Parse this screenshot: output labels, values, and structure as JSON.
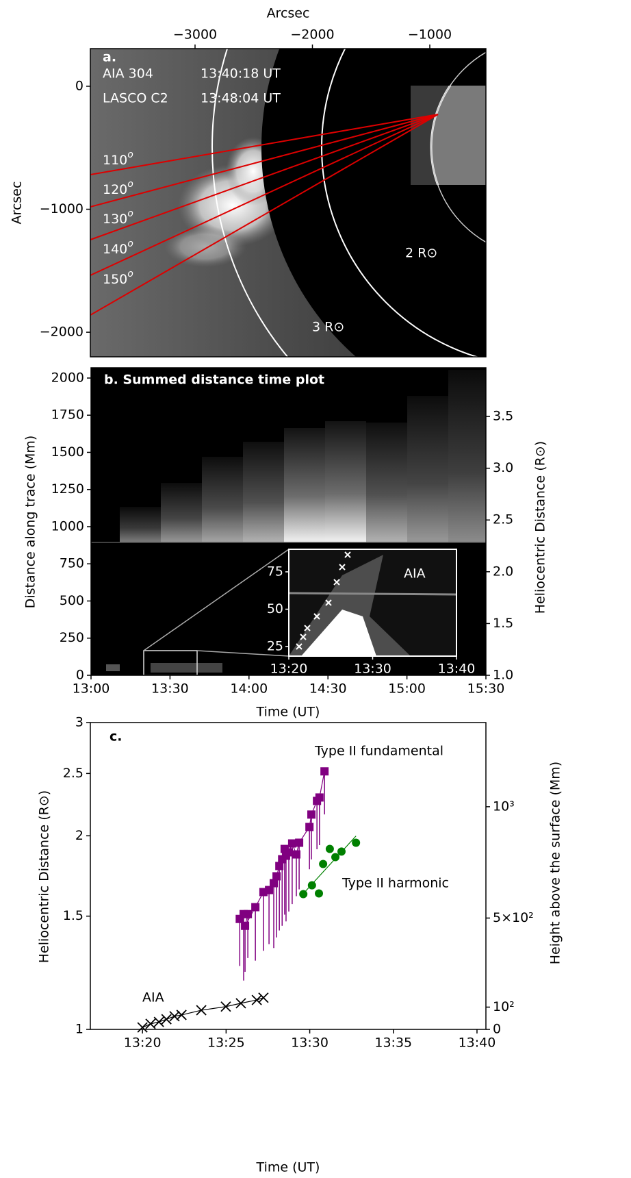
{
  "chart_data": [
    {
      "type": "image",
      "panel_label": "a.",
      "xlabel": "Arcsec",
      "ylabel": "Arcsec",
      "xaxis": "top",
      "xlim": [
        -3892,
        -522
      ],
      "xticks": [
        {
          "value": -3000,
          "label": "−3000"
        },
        {
          "value": -2000,
          "label": "−2000"
        },
        {
          "value": -1000,
          "label": "−1000"
        }
      ],
      "ylim": [
        -2200,
        306
      ],
      "yticks": [
        0,
        {
          "value": -1000,
          "label": "−1000"
        },
        {
          "value": -2000,
          "label": "−2000"
        }
      ],
      "instruments": [
        {
          "name": "AIA 304",
          "time": "13:40:18 UT"
        },
        {
          "name": "LASCO C2",
          "time": "13:48:04 UT"
        }
      ],
      "traces": [
        {
          "angle": "110",
          "sup": "o"
        },
        {
          "angle": "120",
          "sup": "o"
        },
        {
          "angle": "130",
          "sup": "o"
        },
        {
          "angle": "140",
          "sup": "o"
        },
        {
          "angle": "150",
          "sup": "o"
        }
      ],
      "circle_labels": [
        "3 R⊙",
        "2 R⊙"
      ]
    },
    {
      "type": "image",
      "title": "b. Summed distance time plot",
      "xlabel": "Time (UT)",
      "ylabel": "Distance along trace (Mm)",
      "y2label": "Heliocentric Distance (R⊙)",
      "xlim": [
        "13:00",
        "15:30"
      ],
      "xticks": [
        "13:00",
        "13:30",
        "14:00",
        "14:30",
        "15:00",
        "15:30"
      ],
      "ylim": [
        0,
        2069
      ],
      "yticks": [
        0,
        250,
        500,
        750,
        1000,
        1250,
        1500,
        1750,
        2000
      ],
      "y2lim": [
        1.0,
        3.97
      ],
      "y2ticks": [
        {
          "value": 1,
          "label": "1.0"
        },
        1.5,
        {
          "value": 2,
          "label": "2.0"
        },
        2.5,
        {
          "value": 3,
          "label": "3.0"
        },
        3.5
      ],
      "inset": {
        "label": "AIA",
        "xlim": [
          "13:20",
          "13:40"
        ],
        "xticks": [
          "13:20",
          "13:30",
          "13:40"
        ],
        "ylim": [
          18.6,
          90.1
        ],
        "yticks": [
          25,
          50,
          75
        ]
      }
    },
    {
      "type": "scatter",
      "panel_label": "c.",
      "xlabel": "Time (UT)",
      "ylabel": "Heliocentric Distance (R⊙)",
      "y2label": "Height above the surface (Mm)",
      "xlim": [
        "13:16:53",
        "13:40:32"
      ],
      "xticks": [
        "13:20",
        "13:25",
        "13:30",
        "13:35",
        "13:40"
      ],
      "ylim": [
        1,
        3
      ],
      "ylog": true,
      "yticks": [
        1,
        1.5,
        2,
        2.5,
        3
      ],
      "y2lim": [
        0,
        1378
      ],
      "y2ticks": [
        0,
        {
          "value": 100,
          "label": "10²"
        },
        {
          "value": 500,
          "label": "5×10²"
        },
        {
          "value": 1000,
          "label": "10³"
        }
      ],
      "series": [
        {
          "name": "Type II fundamental",
          "color": "#800080",
          "marker": "square",
          "line": "connect",
          "x": [
            "13:25:49",
            "13:26:03",
            "13:26:18",
            "13:26:08",
            "13:26:45",
            "13:27:14",
            "13:27:34",
            "13:27:51",
            "13:28:01",
            "13:28:11",
            "13:28:21",
            "13:28:35",
            "13:28:30",
            "13:28:45",
            "13:28:57",
            "13:29:12",
            "13:29:22",
            "13:29:59",
            "13:30:06",
            "13:30:26",
            "13:30:35",
            "13:30:53"
          ],
          "values": [
            1.485,
            1.511,
            1.511,
            1.449,
            1.549,
            1.635,
            1.647,
            1.688,
            1.73,
            1.795,
            1.839,
            1.862,
            1.908,
            1.885,
            1.946,
            1.871,
            1.951,
            2.064,
            2.158,
            2.266,
            2.294,
            2.519
          ],
          "errors": [
            0.23,
            0.32,
            0.22,
            0.22,
            0.27,
            0.31,
            0.29,
            0.35,
            0.34,
            0.37,
            0.39,
            0.39,
            0.4,
            0.36,
            0.38,
            0.26,
            0.3,
            0.29,
            0.32,
            0.36,
            0.36,
            0.36
          ]
        },
        {
          "name": "Type II harmonic",
          "color": "#008000",
          "marker": "circle",
          "line": "fit",
          "x": [
            "13:29:37",
            "13:30:08",
            "13:30:33",
            "13:30:48",
            "13:31:12",
            "13:31:32",
            "13:31:54",
            "13:32:46"
          ],
          "values": [
            1.623,
            1.675,
            1.627,
            1.808,
            1.908,
            1.853,
            1.89,
            1.951
          ]
        },
        {
          "name": "AIA",
          "color": "#000000",
          "marker": "x",
          "line": "connect",
          "x": [
            "13:20:00",
            "13:20:29",
            "13:20:59",
            "13:21:26",
            "13:21:55",
            "13:22:20",
            "13:23:31",
            "13:24:59",
            "13:25:53",
            "13:26:50",
            "13:27:14"
          ],
          "values": [
            1.007,
            1.02,
            1.027,
            1.037,
            1.048,
            1.053,
            1.071,
            1.085,
            1.098,
            1.111,
            1.12
          ]
        }
      ]
    }
  ]
}
